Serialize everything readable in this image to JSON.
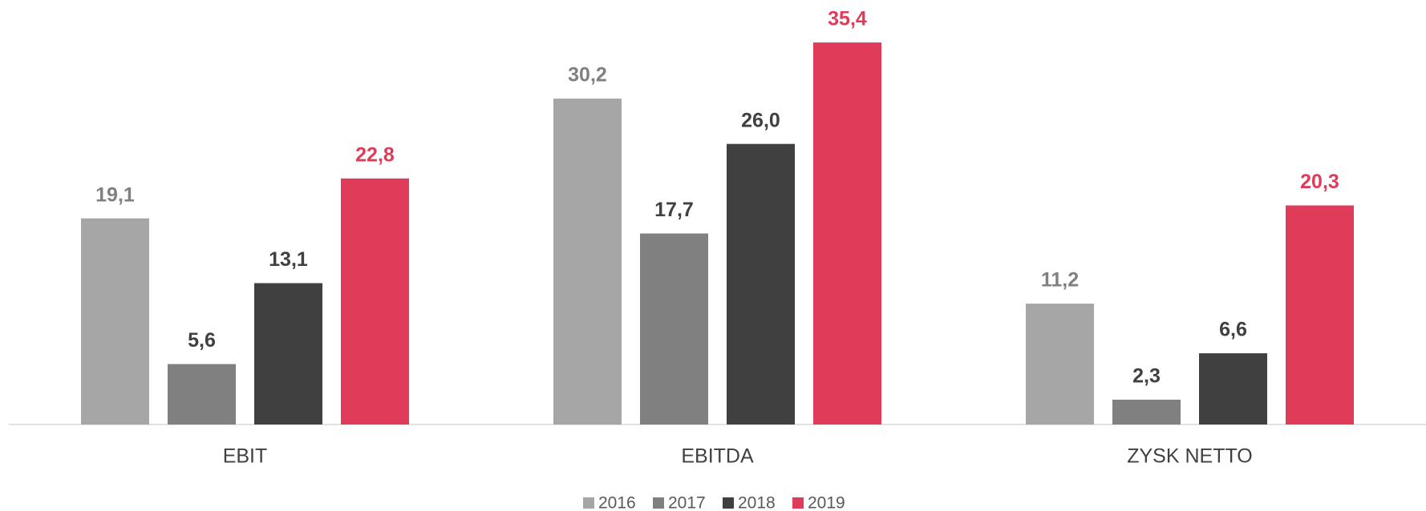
{
  "chart_data": {
    "type": "bar",
    "categories": [
      "EBIT",
      "EBITDA",
      "ZYSK NETTO"
    ],
    "series": [
      {
        "name": "2016",
        "color": "#a6a6a6",
        "label_color": "#808080",
        "values": [
          19.1,
          30.2,
          11.2
        ],
        "value_labels": [
          "19,1",
          "30,2",
          "11,2"
        ]
      },
      {
        "name": "2017",
        "color": "#808080",
        "label_color": "#404040",
        "values": [
          5.6,
          17.7,
          2.3
        ],
        "value_labels": [
          "5,6",
          "17,7",
          "2,3"
        ]
      },
      {
        "name": "2018",
        "color": "#404040",
        "label_color": "#404040",
        "values": [
          13.1,
          26.0,
          6.6
        ],
        "value_labels": [
          "13,1",
          "26,0",
          "6,6"
        ]
      },
      {
        "name": "2019",
        "color": "#e03c5a",
        "label_color": "#e03c5a",
        "values": [
          22.8,
          35.4,
          20.3
        ],
        "value_labels": [
          "22,8",
          "35,4",
          "20,3"
        ]
      }
    ],
    "ylim": [
      0,
      38
    ],
    "legend": "bottom"
  }
}
